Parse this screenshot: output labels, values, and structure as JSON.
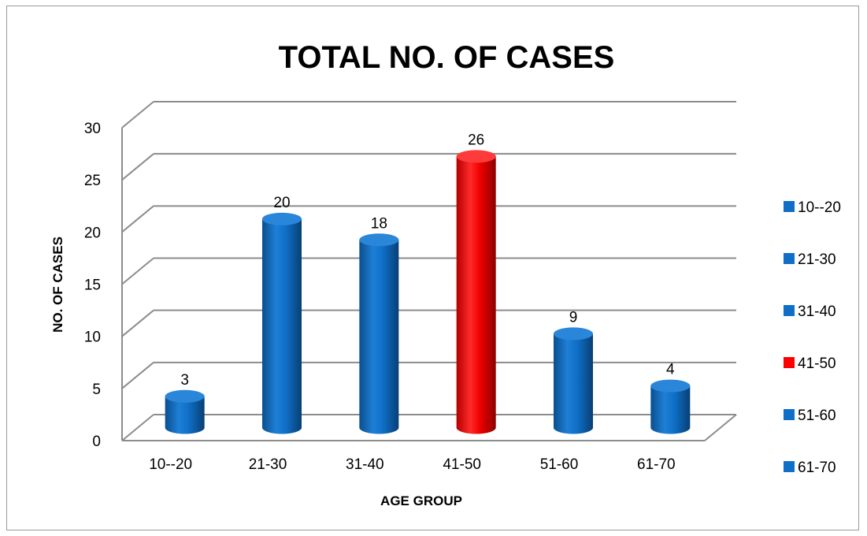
{
  "chart_data": {
    "type": "bar",
    "title": "TOTAL NO. OF CASES",
    "xlabel": "AGE GROUP",
    "ylabel": "NO. OF CASES",
    "categories": [
      "10--20",
      "21-30",
      "31-40",
      "41-50",
      "51-60",
      "61-70"
    ],
    "values": [
      3,
      20,
      18,
      26,
      9,
      4
    ],
    "ylim": [
      0,
      30
    ],
    "yticks": [
      "0",
      "5",
      "10",
      "15",
      "20",
      "25",
      "30"
    ],
    "grid": true,
    "style": "3d-cylinder",
    "bar_colors": [
      "#0f6fc6",
      "#0f6fc6",
      "#0f6fc6",
      "#ff0000",
      "#0f6fc6",
      "#0f6fc6"
    ],
    "legend": {
      "position": "right",
      "entries": [
        "10--20",
        "21-30",
        "31-40",
        "41-50",
        "51-60",
        "61-70"
      ]
    }
  }
}
